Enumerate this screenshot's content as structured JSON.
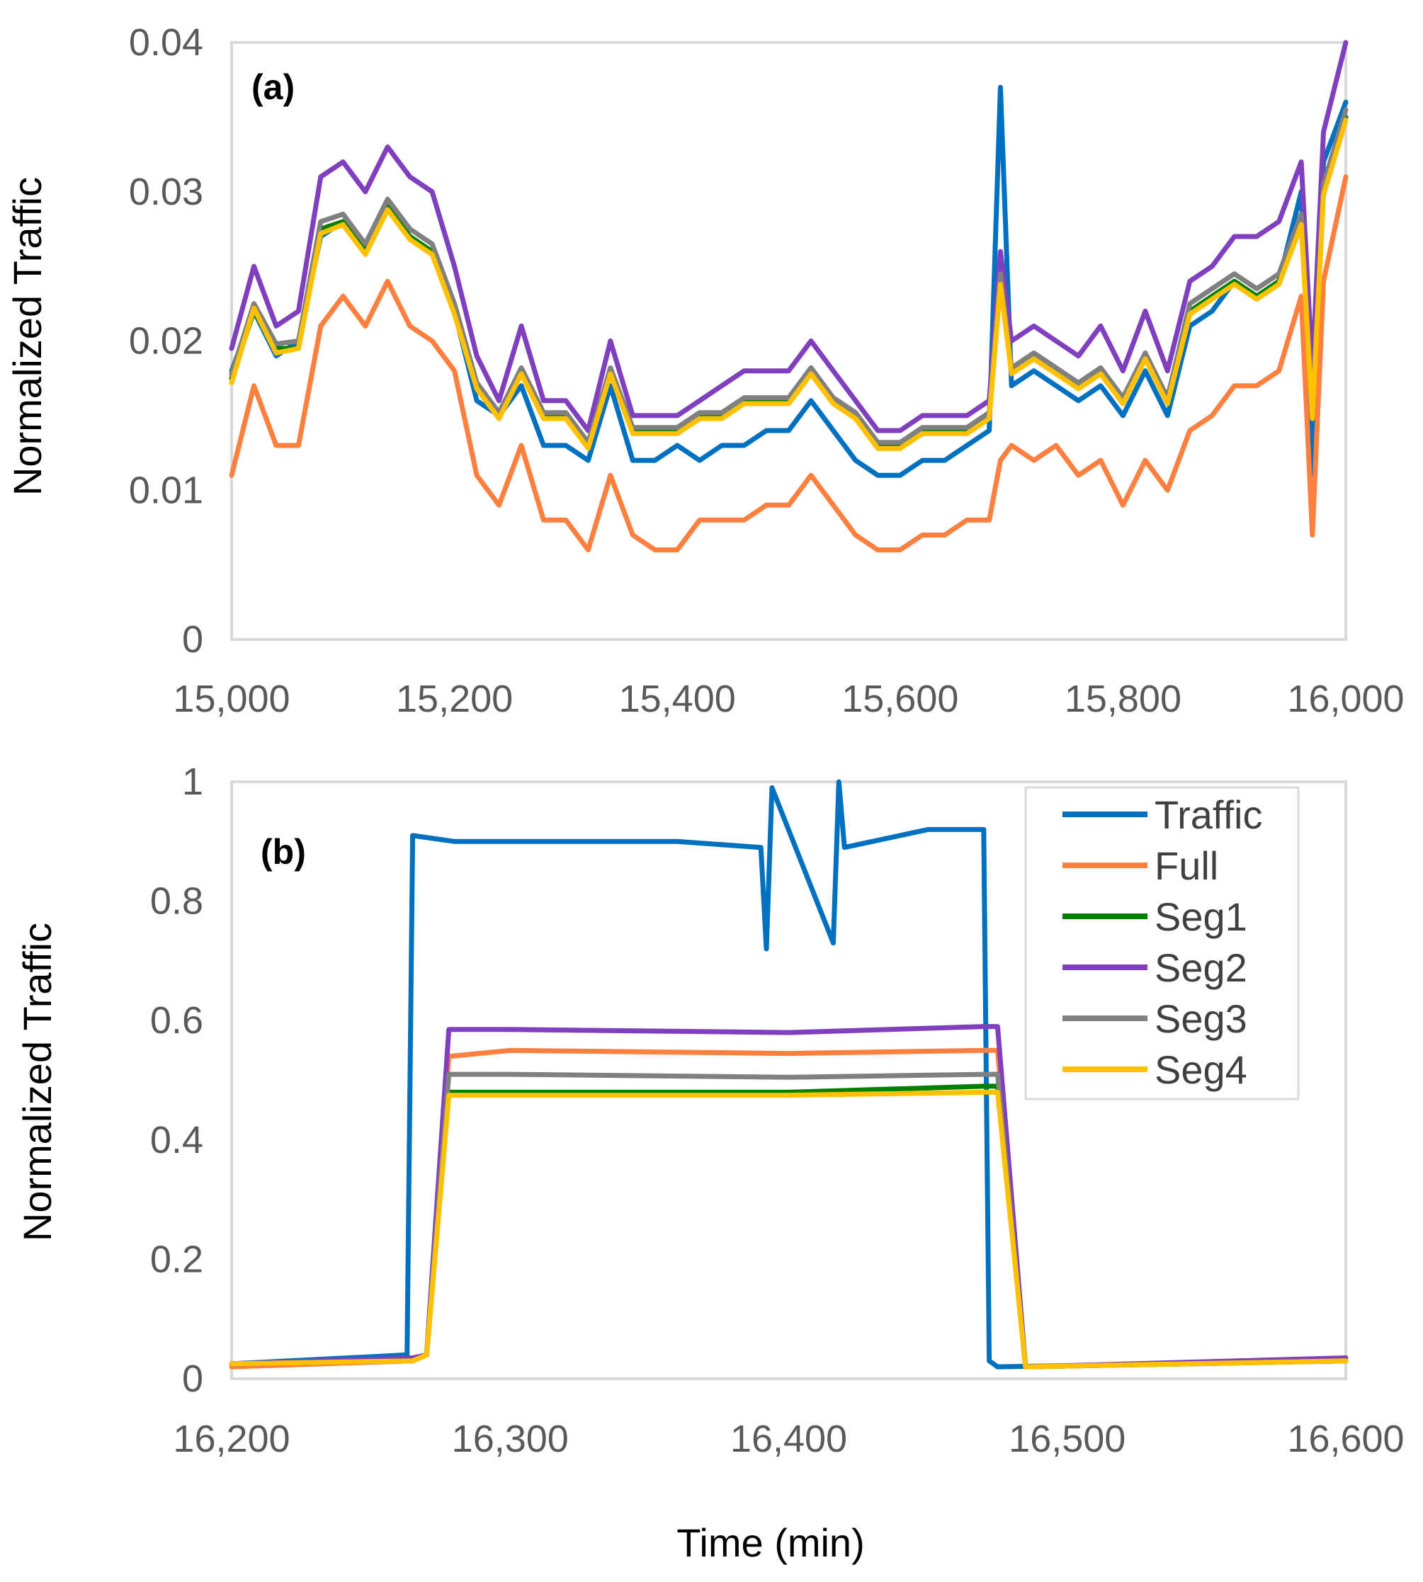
{
  "chart_data": [
    {
      "type": "line",
      "panel_label": "(a)",
      "ylabel": "Normalized Traffic",
      "xlabel": "",
      "xlim": [
        15000,
        16000
      ],
      "ylim": [
        0,
        0.04
      ],
      "x_ticks": [
        15000,
        15200,
        15400,
        15600,
        15800,
        16000
      ],
      "x_tick_labels": [
        "15,000",
        "15,200",
        "15,400",
        "15,600",
        "15,800",
        "16,000"
      ],
      "y_ticks": [
        0,
        0.01,
        0.02,
        0.03,
        0.04
      ],
      "y_tick_labels": [
        "0",
        "0.01",
        "0.02",
        "0.03",
        "0.04"
      ],
      "grid": false,
      "legend": "none",
      "x": [
        15000,
        15020,
        15040,
        15060,
        15080,
        15100,
        15120,
        15140,
        15160,
        15180,
        15200,
        15220,
        15240,
        15260,
        15280,
        15300,
        15320,
        15340,
        15360,
        15380,
        15400,
        15420,
        15440,
        15460,
        15480,
        15500,
        15520,
        15540,
        15560,
        15580,
        15600,
        15620,
        15640,
        15660,
        15680,
        15690,
        15700,
        15720,
        15740,
        15760,
        15780,
        15800,
        15820,
        15840,
        15860,
        15880,
        15900,
        15920,
        15940,
        15960,
        15970,
        15980,
        16000
      ],
      "series": [
        {
          "name": "Traffic",
          "color": "#0070C0",
          "values": [
            0.018,
            0.022,
            0.019,
            0.02,
            0.027,
            0.028,
            0.026,
            0.029,
            0.027,
            0.026,
            0.022,
            0.016,
            0.015,
            0.017,
            0.013,
            0.013,
            0.012,
            0.017,
            0.012,
            0.012,
            0.013,
            0.012,
            0.013,
            0.013,
            0.014,
            0.014,
            0.016,
            0.014,
            0.012,
            0.011,
            0.011,
            0.012,
            0.012,
            0.013,
            0.014,
            0.037,
            0.017,
            0.018,
            0.017,
            0.016,
            0.017,
            0.015,
            0.018,
            0.015,
            0.021,
            0.022,
            0.024,
            0.023,
            0.024,
            0.03,
            0.011,
            0.032,
            0.036
          ]
        },
        {
          "name": "Full",
          "color": "#FF7F3F",
          "values": [
            0.011,
            0.017,
            0.013,
            0.013,
            0.021,
            0.023,
            0.021,
            0.024,
            0.021,
            0.02,
            0.018,
            0.011,
            0.009,
            0.013,
            0.008,
            0.008,
            0.006,
            0.011,
            0.007,
            0.006,
            0.006,
            0.008,
            0.008,
            0.008,
            0.009,
            0.009,
            0.011,
            0.009,
            0.007,
            0.006,
            0.006,
            0.007,
            0.007,
            0.008,
            0.008,
            0.012,
            0.013,
            0.012,
            0.013,
            0.011,
            0.012,
            0.009,
            0.012,
            0.01,
            0.014,
            0.015,
            0.017,
            0.017,
            0.018,
            0.023,
            0.007,
            0.024,
            0.031
          ]
        },
        {
          "name": "Seg1",
          "color": "#008000",
          "values": [
            0.0175,
            0.022,
            0.0195,
            0.0195,
            0.0275,
            0.028,
            0.026,
            0.029,
            0.027,
            0.026,
            0.022,
            0.017,
            0.015,
            0.018,
            0.015,
            0.015,
            0.013,
            0.018,
            0.014,
            0.014,
            0.014,
            0.015,
            0.015,
            0.016,
            0.016,
            0.016,
            0.018,
            0.016,
            0.015,
            0.013,
            0.013,
            0.014,
            0.014,
            0.014,
            0.015,
            0.024,
            0.018,
            0.019,
            0.018,
            0.017,
            0.018,
            0.016,
            0.019,
            0.016,
            0.022,
            0.023,
            0.024,
            0.023,
            0.024,
            0.028,
            0.015,
            0.03,
            0.035
          ]
        },
        {
          "name": "Seg2",
          "color": "#7F3FBF",
          "values": [
            0.0195,
            0.025,
            0.021,
            0.022,
            0.031,
            0.032,
            0.03,
            0.033,
            0.031,
            0.03,
            0.025,
            0.019,
            0.016,
            0.021,
            0.016,
            0.016,
            0.014,
            0.02,
            0.015,
            0.015,
            0.015,
            0.016,
            0.017,
            0.018,
            0.018,
            0.018,
            0.02,
            0.018,
            0.016,
            0.014,
            0.014,
            0.015,
            0.015,
            0.015,
            0.016,
            0.026,
            0.02,
            0.021,
            0.02,
            0.019,
            0.021,
            0.018,
            0.022,
            0.018,
            0.024,
            0.025,
            0.027,
            0.027,
            0.028,
            0.032,
            0.018,
            0.034,
            0.04
          ]
        },
        {
          "name": "Seg3",
          "color": "#808080",
          "values": [
            0.0178,
            0.0225,
            0.0198,
            0.02,
            0.028,
            0.0285,
            0.0265,
            0.0295,
            0.0275,
            0.0265,
            0.0225,
            0.0172,
            0.0152,
            0.0182,
            0.0152,
            0.0152,
            0.0132,
            0.0182,
            0.0142,
            0.0142,
            0.0142,
            0.0152,
            0.0152,
            0.0162,
            0.0162,
            0.0162,
            0.0182,
            0.0162,
            0.0152,
            0.0132,
            0.0132,
            0.0142,
            0.0142,
            0.0142,
            0.0152,
            0.0245,
            0.0182,
            0.0192,
            0.0182,
            0.0172,
            0.0182,
            0.0162,
            0.0192,
            0.0162,
            0.0225,
            0.0235,
            0.0245,
            0.0235,
            0.0245,
            0.0285,
            0.0152,
            0.0305,
            0.0355
          ]
        },
        {
          "name": "Seg4",
          "color": "#FFC000",
          "values": [
            0.0172,
            0.0222,
            0.0192,
            0.0195,
            0.0272,
            0.0278,
            0.0258,
            0.0288,
            0.0268,
            0.0258,
            0.0218,
            0.0168,
            0.0148,
            0.0178,
            0.0148,
            0.0148,
            0.0128,
            0.0178,
            0.0138,
            0.0138,
            0.0138,
            0.0148,
            0.0148,
            0.0158,
            0.0158,
            0.0158,
            0.0178,
            0.0158,
            0.0148,
            0.0128,
            0.0128,
            0.0138,
            0.0138,
            0.0138,
            0.0148,
            0.0238,
            0.0178,
            0.0188,
            0.0178,
            0.0168,
            0.0178,
            0.0158,
            0.0188,
            0.0158,
            0.0218,
            0.0228,
            0.0238,
            0.0228,
            0.0238,
            0.0278,
            0.0148,
            0.0298,
            0.0348
          ]
        }
      ]
    },
    {
      "type": "line",
      "panel_label": "(b)",
      "ylabel": "Normalized Traffic",
      "xlabel": "Time (min)",
      "xlim": [
        16200,
        16600
      ],
      "ylim": [
        0,
        1
      ],
      "x_ticks": [
        16200,
        16300,
        16400,
        16500,
        16600
      ],
      "x_tick_labels": [
        "16,200",
        "16,300",
        "16,400",
        "16,500",
        "16,600"
      ],
      "y_ticks": [
        0,
        0.2,
        0.4,
        0.6,
        0.8,
        1
      ],
      "y_tick_labels": [
        "0",
        "0.2",
        "0.4",
        "0.6",
        "0.8",
        "1"
      ],
      "grid": false,
      "legend": "top-right",
      "series": [
        {
          "name": "Traffic",
          "color": "#0070C0",
          "x": [
            16200,
            16263,
            16265,
            16280,
            16300,
            16330,
            16360,
            16390,
            16392,
            16394,
            16416,
            16418,
            16420,
            16450,
            16470,
            16472,
            16475,
            16600
          ],
          "values": [
            0.025,
            0.04,
            0.91,
            0.9,
            0.9,
            0.9,
            0.9,
            0.89,
            0.72,
            0.99,
            0.73,
            1.0,
            0.89,
            0.92,
            0.92,
            0.03,
            0.02,
            0.03
          ]
        },
        {
          "name": "Full",
          "color": "#FF7F3F",
          "x": [
            16200,
            16265,
            16270,
            16278,
            16300,
            16400,
            16470,
            16475,
            16485,
            16600
          ],
          "values": [
            0.02,
            0.03,
            0.04,
            0.54,
            0.55,
            0.545,
            0.55,
            0.55,
            0.02,
            0.03
          ]
        },
        {
          "name": "Seg1",
          "color": "#008000",
          "x": [
            16200,
            16265,
            16270,
            16278,
            16300,
            16400,
            16470,
            16475,
            16485,
            16600
          ],
          "values": [
            0.025,
            0.03,
            0.04,
            0.48,
            0.48,
            0.48,
            0.49,
            0.49,
            0.02,
            0.03
          ]
        },
        {
          "name": "Seg2",
          "color": "#7F3FBF",
          "x": [
            16200,
            16265,
            16270,
            16278,
            16300,
            16400,
            16470,
            16475,
            16485,
            16600
          ],
          "values": [
            0.025,
            0.035,
            0.04,
            0.585,
            0.585,
            0.58,
            0.59,
            0.59,
            0.02,
            0.035
          ]
        },
        {
          "name": "Seg3",
          "color": "#808080",
          "x": [
            16200,
            16265,
            16270,
            16278,
            16300,
            16400,
            16470,
            16475,
            16485,
            16600
          ],
          "values": [
            0.025,
            0.03,
            0.04,
            0.51,
            0.51,
            0.505,
            0.51,
            0.51,
            0.02,
            0.03
          ]
        },
        {
          "name": "Seg4",
          "color": "#FFC000",
          "x": [
            16200,
            16265,
            16270,
            16278,
            16300,
            16400,
            16470,
            16475,
            16485,
            16600
          ],
          "values": [
            0.025,
            0.03,
            0.04,
            0.475,
            0.475,
            0.475,
            0.48,
            0.48,
            0.02,
            0.03
          ]
        }
      ]
    }
  ]
}
